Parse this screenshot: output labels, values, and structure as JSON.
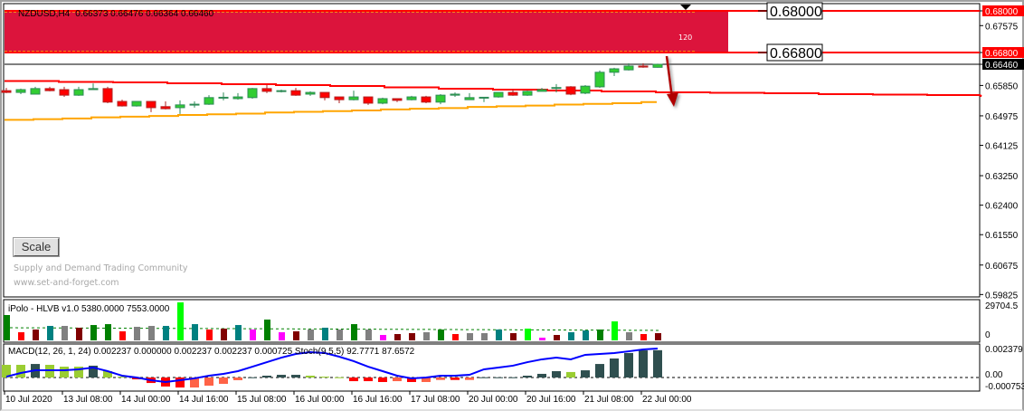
{
  "header": {
    "symbol": "NZDUSD,H4",
    "ohlc": "0.66373 0.66476 0.66364 0.66460"
  },
  "zone": {
    "label": "120",
    "color": "#dc143c",
    "upper": 0.68,
    "lower": 0.668
  },
  "level_labels": [
    "0.68000",
    "0.66800"
  ],
  "price_axis": {
    "ticks": [
      "0.68000",
      "0.67575",
      "0.66800",
      "0.66460",
      "0.65850",
      "0.64975",
      "0.64125",
      "0.63250",
      "0.62400",
      "0.61550",
      "0.60675",
      "0.59825"
    ],
    "tick_values": [
      0.68,
      0.67575,
      0.668,
      0.6646,
      0.6585,
      0.64975,
      0.64125,
      0.6325,
      0.624,
      0.6155,
      0.60675,
      0.59825
    ],
    "highlight": {
      "0.68000": "#ff0000",
      "0.66800": "#ff0000",
      "0.66460": "#000000"
    }
  },
  "scale_button": "Scale",
  "watermark": {
    "line1": "Supply and Demand Trading Community",
    "line2": "www.set-and-forget.com"
  },
  "time_axis": {
    "labels": [
      "10 Jul 2020",
      "13 Jul 08:00",
      "14 Jul 00:00",
      "14 Jul 16:00",
      "15 Jul 08:00",
      "16 Jul 00:00",
      "16 Jul 16:00",
      "17 Jul 08:00",
      "20 Jul 00:00",
      "20 Jul 16:00",
      "21 Jul 08:00",
      "22 Jul 00:00"
    ],
    "label_bars": [
      0,
      4,
      8,
      12,
      16,
      20,
      24,
      28,
      32,
      36,
      40,
      44
    ]
  },
  "chart_data": [
    {
      "type": "candlestick",
      "title": "NZDUSD,H4",
      "ylim": [
        0.59825,
        0.68
      ],
      "colors": {
        "bull": "#32cd32",
        "bear": "#ff0000",
        "bull_border": "#2e8b57",
        "bear_border": "#b22222"
      },
      "candles": [
        [
          0.657,
          0.6578,
          0.6563,
          0.6565
        ],
        [
          0.6565,
          0.6576,
          0.656,
          0.6573
        ],
        [
          0.656,
          0.6581,
          0.656,
          0.6576
        ],
        [
          0.6576,
          0.6581,
          0.6568,
          0.657
        ],
        [
          0.6573,
          0.6581,
          0.6552,
          0.6557
        ],
        [
          0.6557,
          0.6581,
          0.6555,
          0.6573
        ],
        [
          0.6573,
          0.6591,
          0.6573,
          0.6576
        ],
        [
          0.6576,
          0.6581,
          0.6534,
          0.6537
        ],
        [
          0.6539,
          0.6544,
          0.6524,
          0.6526
        ],
        [
          0.6526,
          0.6539,
          0.6524,
          0.6539
        ],
        [
          0.6539,
          0.6539,
          0.6508,
          0.6521
        ],
        [
          0.6524,
          0.6539,
          0.6516,
          0.6518
        ],
        [
          0.6521,
          0.6542,
          0.6503,
          0.6529
        ],
        [
          0.6529,
          0.6539,
          0.6521,
          0.6531
        ],
        [
          0.6531,
          0.6557,
          0.6529,
          0.655
        ],
        [
          0.655,
          0.6565,
          0.6542,
          0.6551
        ],
        [
          0.6547,
          0.6563,
          0.6544,
          0.6552
        ],
        [
          0.655,
          0.6578,
          0.6547,
          0.6576
        ],
        [
          0.6576,
          0.6586,
          0.6563,
          0.6568
        ],
        [
          0.6568,
          0.6573,
          0.6565,
          0.657
        ],
        [
          0.657,
          0.6578,
          0.6555,
          0.6557
        ],
        [
          0.656,
          0.6568,
          0.6555,
          0.6565
        ],
        [
          0.6565,
          0.6565,
          0.6542,
          0.655
        ],
        [
          0.6552,
          0.6552,
          0.6534,
          0.6544
        ],
        [
          0.6544,
          0.657,
          0.6542,
          0.6552
        ],
        [
          0.6552,
          0.6552,
          0.6529,
          0.6534
        ],
        [
          0.6534,
          0.655,
          0.6531,
          0.6547
        ],
        [
          0.6547,
          0.6547,
          0.6537,
          0.6542
        ],
        [
          0.6544,
          0.6555,
          0.6542,
          0.6552
        ],
        [
          0.6552,
          0.6555,
          0.6534,
          0.6537
        ],
        [
          0.6537,
          0.656,
          0.6531,
          0.6557
        ],
        [
          0.6557,
          0.6565,
          0.6552,
          0.656
        ],
        [
          0.6544,
          0.6563,
          0.6544,
          0.655
        ],
        [
          0.655,
          0.655,
          0.6537,
          0.6551
        ],
        [
          0.6552,
          0.6565,
          0.655,
          0.6565
        ],
        [
          0.6565,
          0.6573,
          0.6555,
          0.6557
        ],
        [
          0.6557,
          0.657,
          0.6555,
          0.6568
        ],
        [
          0.6568,
          0.6578,
          0.6568,
          0.6573
        ],
        [
          0.6578,
          0.6589,
          0.6565,
          0.6579
        ],
        [
          0.6581,
          0.6583,
          0.6557,
          0.656
        ],
        [
          0.6563,
          0.6586,
          0.656,
          0.6583
        ],
        [
          0.6581,
          0.6628,
          0.6578,
          0.6623
        ],
        [
          0.6623,
          0.6636,
          0.6612,
          0.6633
        ],
        [
          0.663,
          0.6649,
          0.6628,
          0.6641
        ],
        [
          0.6641,
          0.6649,
          0.6636,
          0.6638
        ],
        [
          0.66373,
          0.66476,
          0.66364,
          0.6646
        ]
      ],
      "red_ma_steps": [
        0.65978,
        0.65952,
        0.65939,
        0.65913,
        0.65887,
        0.65861,
        0.65834,
        0.65795,
        0.65756,
        0.6573,
        0.65704,
        0.65678,
        0.65652,
        0.65639,
        0.65626,
        0.656,
        0.65587,
        0.65574,
        0.65548
      ],
      "orange_ma_steps": [
        0.6486,
        0.6488,
        0.649,
        0.6493,
        0.6495,
        0.6497,
        0.65,
        0.6502,
        0.6504,
        0.6507,
        0.6509,
        0.6511,
        0.6513,
        0.6516,
        0.6518,
        0.652,
        0.6523,
        0.6525,
        0.6527,
        0.653,
        0.6532,
        0.6534,
        0.6537
      ],
      "current_price": 0.6646,
      "arrow": "down"
    },
    {
      "type": "bar",
      "title": "iPolo - HLVB v1.0 5380.0000 7553.0000",
      "ylim": [
        0,
        29704.5
      ],
      "ticks": [
        "29704.5",
        "0"
      ],
      "values": [
        19800,
        6360,
        8480,
        11300,
        11300,
        9900,
        12000,
        12700,
        7070,
        10600,
        11300,
        11300,
        29700,
        12700,
        8480,
        9190,
        12000,
        8480,
        16260,
        6360,
        7070,
        8480,
        9900,
        8480,
        12700,
        8480,
        4240,
        4950,
        5660,
        6360,
        8480,
        4950,
        5660,
        5660,
        8480,
        5660,
        9190,
        2120,
        4240,
        6360,
        7780,
        8480,
        14850,
        6360,
        4950,
        5660
      ],
      "colors": [
        "#008000",
        "#ff0000",
        "#800000",
        "#008080",
        "#808080",
        "#800000",
        "#008000",
        "#008000",
        "#ff0000",
        "#808080",
        "#808080",
        "#008080",
        "#00ff00",
        "#008080",
        "#ff0000",
        "#800000",
        "#008080",
        "#ff00ff",
        "#008000",
        "#ff00ff",
        "#800000",
        "#808080",
        "#008080",
        "#808080",
        "#008000",
        "#808080",
        "#ff00ff",
        "#800000",
        "#800000",
        "#808080",
        "#008000",
        "#ff0000",
        "#808080",
        "#808080",
        "#008080",
        "#800000",
        "#00ff00",
        "#ff00ff",
        "#800000",
        "#008080",
        "#008080",
        "#008000",
        "#00ff00",
        "#808080",
        "#ff0000",
        "#800000"
      ],
      "average_line": {
        "start": 9900,
        "end": 7800,
        "color": "#008000"
      }
    },
    {
      "type": "bar",
      "title": "MACD(12, 26, 1, 24) 0.002237 0.000000 0.002237 0.002237 0.000725  Stoch(9,5,5) 92.7771 87.6572",
      "ylim": [
        -0.000753,
        0.002379
      ],
      "ticks": [
        "0.002379",
        "0.00",
        "-0.000753"
      ],
      "histogram": [
        0.00104,
        0.00104,
        0.00111,
        0.00104,
        0.00089,
        0.00089,
        0.00097,
        0.00052,
        7e-05,
        -0.00015,
        -0.00045,
        -0.00074,
        -0.00082,
        -0.00082,
        -0.00067,
        -0.00052,
        -0.00022,
        2e-05,
        0.00015,
        0.00022,
        0.00022,
        0.00015,
        7e-05,
        2e-05,
        -0.0003,
        -0.0003,
        -0.00037,
        -0.0003,
        -0.00037,
        -0.00037,
        -0.0002,
        -0.0002,
        -0.0002,
        2e-05,
        2e-05,
        2e-05,
        0.00015,
        0.0003,
        0.00052,
        0.00045,
        0.00059,
        0.00111,
        0.00156,
        0.00201,
        0.00223,
        0.00224
      ],
      "histogram_colors": [
        "#9acd32",
        "#9acd32",
        "#2f4f4f",
        "#9acd32",
        "#9acd32",
        "#9acd32",
        "#2f4f4f",
        "#9acd32",
        "#9acd32",
        "#ff0000",
        "#ff0000",
        "#ff0000",
        "#ff0000",
        "#ff6347",
        "#ff6347",
        "#ff6347",
        "#ff6347",
        "#2f4f4f",
        "#2f4f4f",
        "#2f4f4f",
        "#2f4f4f",
        "#9acd32",
        "#9acd32",
        "#9acd32",
        "#ff0000",
        "#ff0000",
        "#ff0000",
        "#ff6347",
        "#ff0000",
        "#ff6347",
        "#ff6347",
        "#ff0000",
        "#ff6347",
        "#2f4f4f",
        "#2f4f4f",
        "#2f4f4f",
        "#2f4f4f",
        "#2f4f4f",
        "#2f4f4f",
        "#9acd32",
        "#2f4f4f",
        "#2f4f4f",
        "#2f4f4f",
        "#2f4f4f",
        "#2f4f4f",
        "#2f4f4f"
      ],
      "line": [
        7e-05,
        0.00037,
        0.00059,
        0.00059,
        0.00059,
        0.00067,
        0.00082,
        0.00052,
        0.00015,
        0,
        -0.00022,
        -0.00037,
        -0.00022,
        -7e-05,
        0.00015,
        0.0003,
        0.00052,
        0.00089,
        0.00126,
        0.00163,
        0.00193,
        0.00208,
        0.00201,
        0.00171,
        0.00134,
        0.00089,
        0.00052,
        0.00015,
        -7e-05,
        0,
        0.00015,
        0.00015,
        0.00022,
        0.00067,
        0.00082,
        0.00097,
        0.00126,
        0.00149,
        0.00163,
        0.00149,
        0.00186,
        0.00193,
        0.00201,
        0.00215,
        0.0023,
        0.00238
      ],
      "line_color": "#0000ff"
    }
  ]
}
